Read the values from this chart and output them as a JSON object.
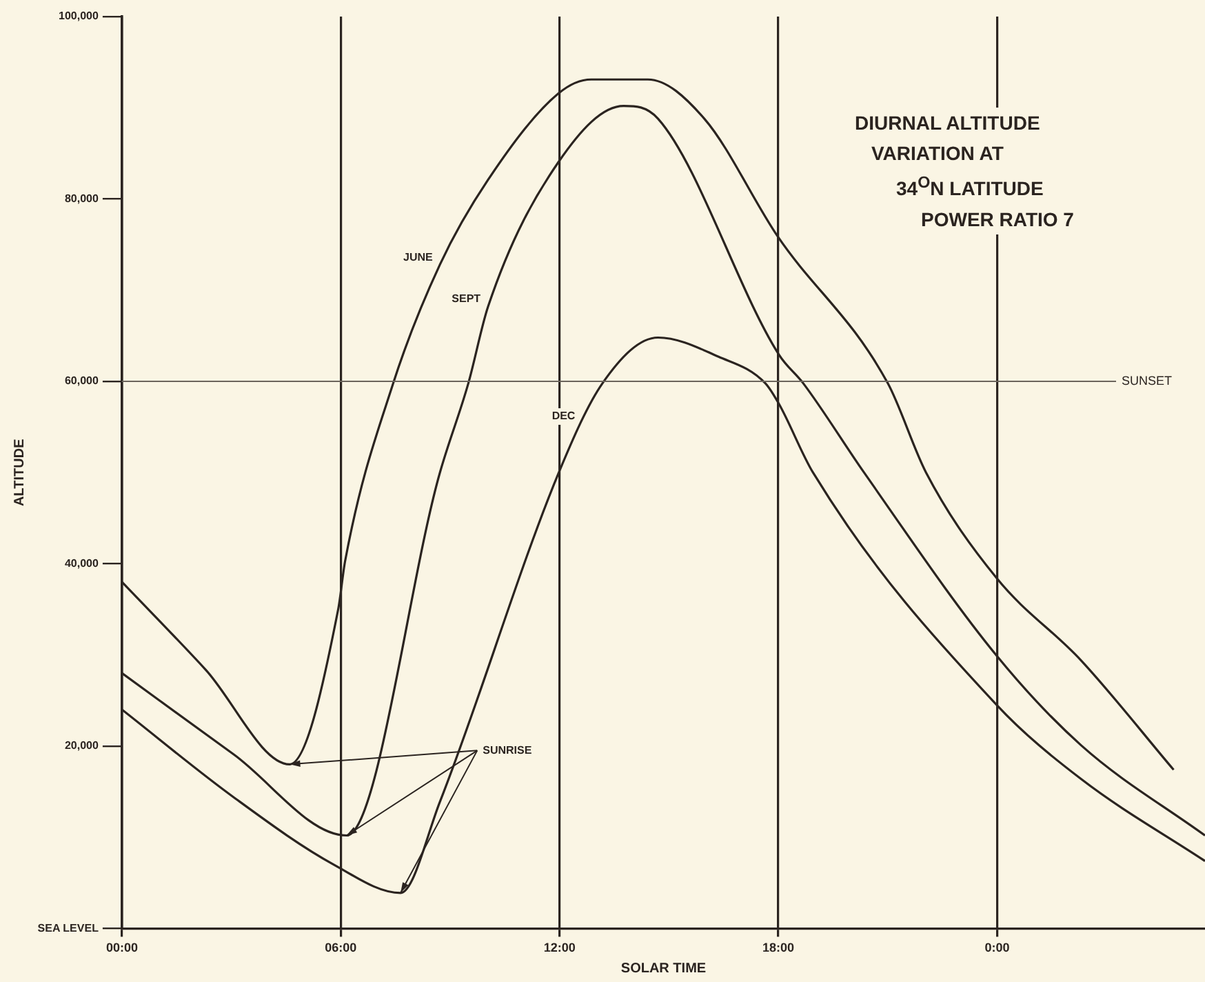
{
  "chart_data": {
    "type": "line",
    "title": "DIURNAL ALTITUDE\nVARIATION AT\n34$^{O}$N LATITUDE\nPOWER RATIO 7",
    "xlabel": "SOLAR TIME",
    "ylabel": "ALTITUDE",
    "xlim": [
      0,
      29.7
    ],
    "ylim": [
      0,
      100000
    ],
    "xticks": [
      {
        "value": 0,
        "label": "00:00"
      },
      {
        "value": 6,
        "label": "06:00"
      },
      {
        "value": 12,
        "label": "12:00"
      },
      {
        "value": 18,
        "label": "18:00"
      },
      {
        "value": 24,
        "label": "0:00"
      }
    ],
    "yticks": [
      {
        "value": 0,
        "label": "SEA LEVEL"
      },
      {
        "value": 20000,
        "label": "20,000"
      },
      {
        "value": 40000,
        "label": "40,000"
      },
      {
        "value": 60000,
        "label": "60,000"
      },
      {
        "value": 80000,
        "label": "80,000"
      },
      {
        "value": 100000,
        "label": "100,000"
      }
    ],
    "grid": "x",
    "legend": false,
    "marker": "none",
    "line_style": "solid",
    "ref_lines": [
      {
        "axis": "y",
        "value": 60000,
        "label": "SUNSET",
        "color": "#6b645c"
      }
    ],
    "annotations": [
      {
        "text": "SUNRISE",
        "x": 4.6,
        "y": 18000
      }
    ],
    "series": [
      {
        "name": "JUNE",
        "color": "#2b2420",
        "x": [
          0,
          2.29,
          4.6,
          5.93,
          6.12,
          7.44,
          8.72,
          10.04,
          11.98,
          12.87,
          14.42,
          15.97,
          17.98,
          21.0,
          22.05,
          23.99,
          26.3,
          28.84
        ],
        "values": [
          38000,
          28400,
          18000,
          35000,
          40300,
          59800,
          72800,
          82100,
          91600,
          93100,
          93100,
          88800,
          75900,
          59800,
          50000,
          38400,
          29400,
          17400
        ]
      },
      {
        "name": "SEPT",
        "color": "#2b2420",
        "x": [
          0,
          3.06,
          6.16,
          8.72,
          9.5,
          10.04,
          11.98,
          13.76,
          14.7,
          18.02,
          18.68,
          20.35,
          23.99,
          26.3,
          29.7
        ],
        "values": [
          28000,
          19100,
          10200,
          50000,
          59800,
          68200,
          84100,
          90200,
          88800,
          62900,
          59800,
          50000,
          29900,
          20100,
          10200
        ]
      },
      {
        "name": "DEC",
        "color": "#2b2420",
        "x": [
          0,
          3.06,
          5.81,
          7.64,
          8.72,
          11.98,
          13.18,
          14.7,
          16.36,
          17.64,
          18.02,
          18.95,
          23.99,
          26.3,
          29.7
        ],
        "values": [
          24000,
          14400,
          7000,
          3900,
          13900,
          50000,
          59800,
          64800,
          62700,
          59800,
          57500,
          50000,
          24500,
          16400,
          7400
        ]
      }
    ]
  }
}
